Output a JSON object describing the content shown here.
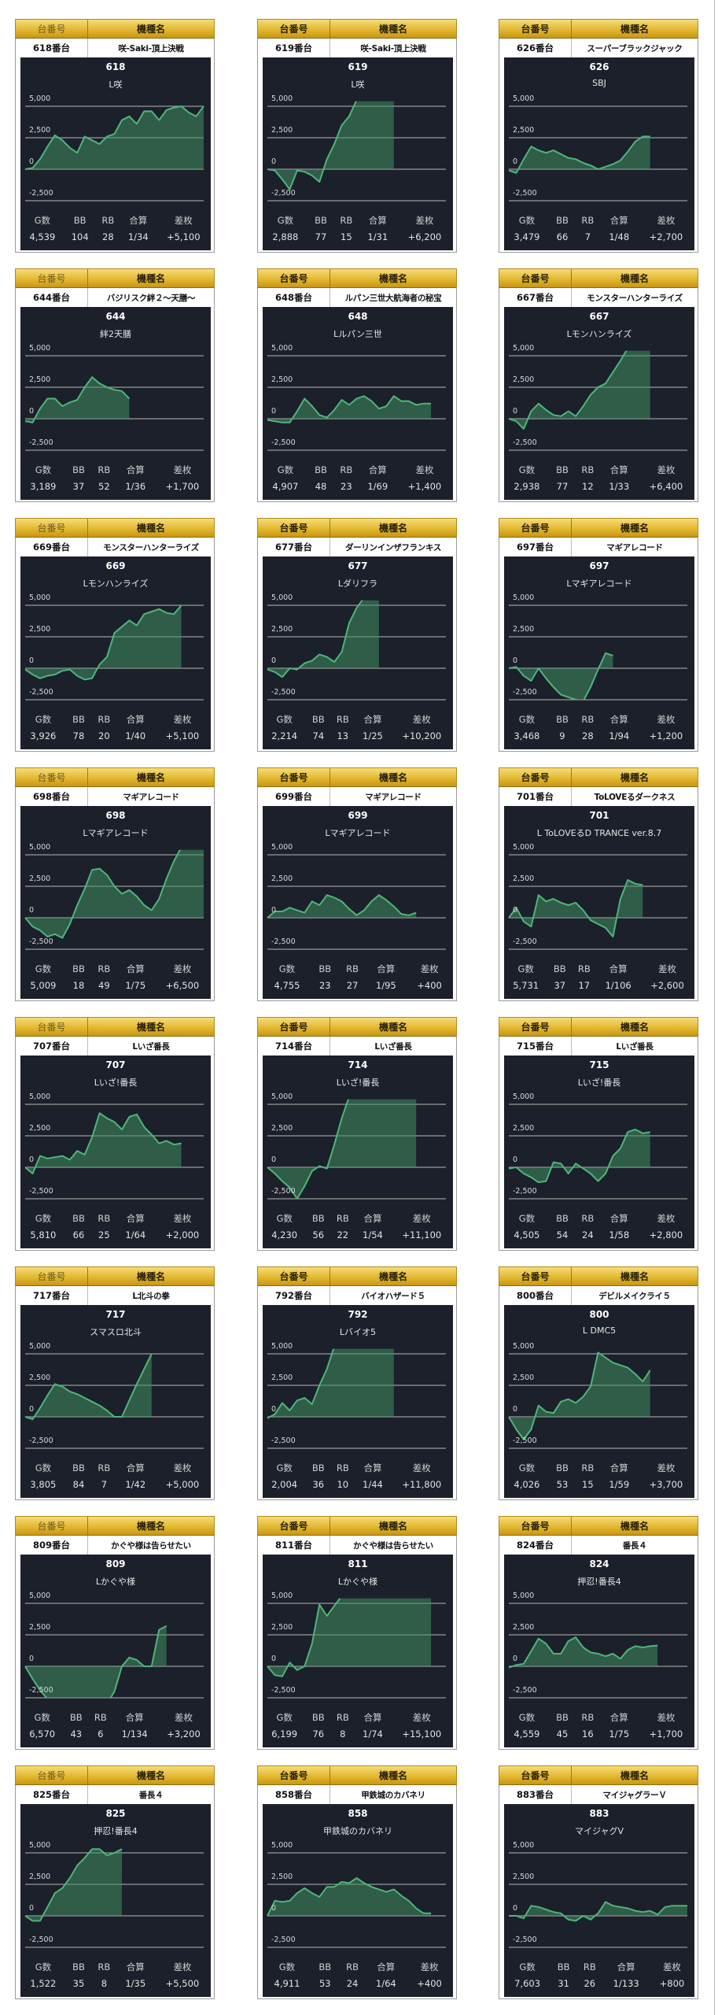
{
  "labels": {
    "header_number": "台番号",
    "header_model": "機種名",
    "stat_games": "G数",
    "stat_bb": "BB",
    "stat_rb": "RB",
    "stat_total": "合算",
    "stat_diff": "差枚"
  },
  "chart_axis": {
    "ylim": [
      -2500,
      5400
    ],
    "ticks": [
      {
        "value": 5000,
        "label": "5,000"
      },
      {
        "value": 2500,
        "label": "2,500"
      },
      {
        "value": 0,
        "label": "0"
      },
      {
        "value": -2500,
        "label": "-2,500"
      }
    ],
    "x_slots": 24
  },
  "colors": {
    "line": "#4fb57a",
    "fill": "#3f8f61",
    "panel": "#1c202b",
    "grid": "#9a9a9a",
    "gold": "#e3b832"
  },
  "machines": [
    {
      "number_label": "618番台",
      "model": "咲-Saki-頂上決戦",
      "title": "618",
      "subtitle": "L咲",
      "games": "4,539",
      "bb": "104",
      "rb": "28",
      "total": "1/34",
      "diff": "+5,100"
    },
    {
      "number_label": "619番台",
      "model": "咲-Saki-頂上決戦",
      "title": "619",
      "subtitle": "L咲",
      "games": "2,888",
      "bb": "77",
      "rb": "15",
      "total": "1/31",
      "diff": "+6,200"
    },
    {
      "number_label": "626番台",
      "model": "スーパーブラックジャック",
      "title": "626",
      "subtitle": "SBJ",
      "games": "3,479",
      "bb": "66",
      "rb": "7",
      "total": "1/48",
      "diff": "+2,700"
    },
    {
      "number_label": "644番台",
      "model": "バジリスク絆２～天膳～",
      "title": "644",
      "subtitle": "絆2天膳",
      "games": "3,189",
      "bb": "37",
      "rb": "52",
      "total": "1/36",
      "diff": "+1,700"
    },
    {
      "number_label": "648番台",
      "model": "ルパン三世大航海者の秘宝",
      "title": "648",
      "subtitle": "Lルパン三世",
      "games": "4,907",
      "bb": "48",
      "rb": "23",
      "total": "1/69",
      "diff": "+1,400"
    },
    {
      "number_label": "667番台",
      "model": "モンスターハンターライズ",
      "title": "667",
      "subtitle": "Lモンハンライズ",
      "games": "2,938",
      "bb": "77",
      "rb": "12",
      "total": "1/33",
      "diff": "+6,400"
    },
    {
      "number_label": "669番台",
      "model": "モンスターハンターライズ",
      "title": "669",
      "subtitle": "Lモンハンライズ",
      "games": "3,926",
      "bb": "78",
      "rb": "20",
      "total": "1/40",
      "diff": "+5,100"
    },
    {
      "number_label": "677番台",
      "model": "ダーリンインザフランキス",
      "title": "677",
      "subtitle": "Lダリフラ",
      "games": "2,214",
      "bb": "74",
      "rb": "13",
      "total": "1/25",
      "diff": "+10,200"
    },
    {
      "number_label": "697番台",
      "model": "マギアレコード",
      "title": "697",
      "subtitle": "Lマギアレコード",
      "games": "3,468",
      "bb": "9",
      "rb": "28",
      "total": "1/94",
      "diff": "+1,200"
    },
    {
      "number_label": "698番台",
      "model": "マギアレコード",
      "title": "698",
      "subtitle": "Lマギアレコード",
      "games": "5,009",
      "bb": "18",
      "rb": "49",
      "total": "1/75",
      "diff": "+6,500"
    },
    {
      "number_label": "699番台",
      "model": "マギアレコード",
      "title": "699",
      "subtitle": "Lマギアレコード",
      "games": "4,755",
      "bb": "23",
      "rb": "27",
      "total": "1/95",
      "diff": "+400"
    },
    {
      "number_label": "701番台",
      "model": "ToLOVEるダークネス",
      "title": "701",
      "subtitle": "L ToLOVEるD TRANCE ver.8.7",
      "games": "5,731",
      "bb": "37",
      "rb": "17",
      "total": "1/106",
      "diff": "+2,600"
    },
    {
      "number_label": "707番台",
      "model": "Lいざ番長",
      "title": "707",
      "subtitle": "Lいざ!番長",
      "games": "5,810",
      "bb": "66",
      "rb": "25",
      "total": "1/64",
      "diff": "+2,000"
    },
    {
      "number_label": "714番台",
      "model": "Lいざ番長",
      "title": "714",
      "subtitle": "Lいざ!番長",
      "games": "4,230",
      "bb": "56",
      "rb": "22",
      "total": "1/54",
      "diff": "+11,100"
    },
    {
      "number_label": "715番台",
      "model": "Lいざ番長",
      "title": "715",
      "subtitle": "Lいざ!番長",
      "games": "4,505",
      "bb": "54",
      "rb": "24",
      "total": "1/58",
      "diff": "+2,800"
    },
    {
      "number_label": "717番台",
      "model": "L北斗の拳",
      "title": "717",
      "subtitle": "スマスロ北斗",
      "games": "3,805",
      "bb": "84",
      "rb": "7",
      "total": "1/42",
      "diff": "+5,000"
    },
    {
      "number_label": "792番台",
      "model": "バイオハザード５",
      "title": "792",
      "subtitle": "Lバイオ5",
      "games": "2,004",
      "bb": "36",
      "rb": "10",
      "total": "1/44",
      "diff": "+11,800"
    },
    {
      "number_label": "800番台",
      "model": "デビルメイクライ５",
      "title": "800",
      "subtitle": "L DMC5",
      "games": "4,026",
      "bb": "53",
      "rb": "15",
      "total": "1/59",
      "diff": "+3,700"
    },
    {
      "number_label": "809番台",
      "model": "かぐや様は告らせたい",
      "title": "809",
      "subtitle": "Lかぐや様",
      "games": "6,570",
      "bb": "43",
      "rb": "6",
      "total": "1/134",
      "diff": "+3,200"
    },
    {
      "number_label": "811番台",
      "model": "かぐや様は告らせたい",
      "title": "811",
      "subtitle": "Lかぐや様",
      "games": "6,199",
      "bb": "76",
      "rb": "8",
      "total": "1/74",
      "diff": "+15,100"
    },
    {
      "number_label": "824番台",
      "model": "番長４",
      "title": "824",
      "subtitle": "押忍!番長4",
      "games": "4,559",
      "bb": "45",
      "rb": "16",
      "total": "1/75",
      "diff": "+1,700"
    },
    {
      "number_label": "825番台",
      "model": "番長４",
      "title": "825",
      "subtitle": "押忍!番長4",
      "games": "1,522",
      "bb": "35",
      "rb": "8",
      "total": "1/35",
      "diff": "+5,500"
    },
    {
      "number_label": "858番台",
      "model": "甲鉄城のカバネリ",
      "title": "858",
      "subtitle": "甲鉄城のカバネリ",
      "games": "4,911",
      "bb": "53",
      "rb": "24",
      "total": "1/64",
      "diff": "+400"
    },
    {
      "number_label": "883番台",
      "model": "マイジャグラーＶ",
      "title": "883",
      "subtitle": "マイジャグV",
      "games": "7,603",
      "bb": "31",
      "rb": "26",
      "total": "1/133",
      "diff": "+800"
    }
  ],
  "chart_data": [
    {
      "type": "area",
      "series": [
        0,
        100,
        800,
        1800,
        2700,
        2300,
        1700,
        1300,
        2600,
        2300,
        2000,
        2600,
        2800,
        3900,
        4200,
        3600,
        4600,
        4600,
        3900,
        4700,
        4900,
        5000,
        4500,
        4200,
        5000
      ]
    },
    {
      "type": "area",
      "series": [
        0,
        -100,
        -800,
        -1600,
        -100,
        -200,
        -500,
        -1000,
        800,
        2000,
        3500,
        4200,
        5500,
        6000,
        6200,
        6200,
        6300,
        6200
      ]
    },
    {
      "type": "area",
      "series": [
        -100,
        -300,
        800,
        1800,
        1500,
        1300,
        1500,
        1200,
        900,
        800,
        500,
        300,
        0,
        200,
        400,
        700,
        1400,
        2200,
        2600,
        2600
      ]
    },
    {
      "type": "area",
      "series": [
        -200,
        -300,
        800,
        1600,
        1600,
        1000,
        1300,
        1500,
        2500,
        3300,
        2800,
        2500,
        2300,
        2200,
        1600
      ]
    },
    {
      "type": "area",
      "series": [
        -100,
        -200,
        -300,
        -300,
        600,
        1600,
        1000,
        300,
        100,
        700,
        1500,
        1100,
        1600,
        1800,
        1400,
        800,
        1000,
        1800,
        1400,
        1400,
        1100,
        1200,
        1200
      ]
    },
    {
      "type": "area",
      "series": [
        0,
        -200,
        -800,
        600,
        1200,
        700,
        300,
        200,
        600,
        200,
        1000,
        1900,
        2500,
        2800,
        3700,
        4600,
        5600,
        6000,
        6000,
        6000
      ]
    },
    {
      "type": "area",
      "series": [
        -100,
        -500,
        -800,
        -600,
        -500,
        -200,
        -100,
        -600,
        -900,
        -800,
        300,
        900,
        2800,
        3300,
        3800,
        3400,
        4300,
        4500,
        4700,
        4400,
        4300,
        5000
      ]
    },
    {
      "type": "area",
      "series": [
        -100,
        -300,
        -700,
        0,
        -100,
        400,
        600,
        1100,
        900,
        500,
        1300,
        3600,
        4800,
        5600,
        5600,
        5600
      ]
    },
    {
      "type": "area",
      "series": [
        0,
        100,
        -600,
        -1000,
        0,
        -800,
        -1500,
        -2100,
        -2300,
        -2500,
        -2600,
        -1500,
        -100,
        1200,
        1000
      ]
    },
    {
      "type": "area",
      "series": [
        0,
        -700,
        -1000,
        -1500,
        -1300,
        -1600,
        -500,
        1000,
        2300,
        3800,
        3900,
        3400,
        2500,
        1900,
        2200,
        1700,
        1000,
        600,
        1500,
        3100,
        4500,
        5600,
        5600,
        5600,
        5600
      ]
    },
    {
      "type": "area",
      "series": [
        0,
        500,
        500,
        800,
        600,
        400,
        1300,
        1000,
        1800,
        1600,
        1300,
        700,
        200,
        600,
        1300,
        1800,
        1400,
        900,
        300,
        200,
        400
      ]
    },
    {
      "type": "area",
      "series": [
        0,
        800,
        -300,
        -700,
        1800,
        1300,
        1500,
        1200,
        1000,
        1200,
        600,
        -200,
        -500,
        -800,
        -1500,
        1500,
        3000,
        2700,
        2600
      ]
    },
    {
      "type": "area",
      "series": [
        0,
        -500,
        900,
        700,
        800,
        900,
        600,
        1300,
        1000,
        2400,
        4300,
        3900,
        3600,
        3000,
        4000,
        4200,
        3200,
        2600,
        1900,
        2100,
        1800,
        1900
      ]
    },
    {
      "type": "area",
      "series": [
        0,
        -500,
        -1100,
        -1600,
        -2500,
        -1500,
        -300,
        100,
        -100,
        1800,
        3900,
        5600,
        5600,
        5600,
        5600,
        5600,
        5600,
        5600,
        5600,
        5600,
        5600
      ]
    },
    {
      "type": "area",
      "series": [
        -100,
        0,
        -500,
        -800,
        -1200,
        -1100,
        400,
        300,
        -500,
        300,
        -100,
        -500,
        -1100,
        -500,
        900,
        1500,
        2800,
        3000,
        2700,
        2800
      ]
    },
    {
      "type": "area",
      "series": [
        0,
        -200,
        700,
        1700,
        2600,
        2400,
        2000,
        1800,
        1500,
        1200,
        900,
        500,
        0,
        0,
        1300,
        2600,
        3800,
        5000
      ]
    },
    {
      "type": "area",
      "series": [
        -100,
        200,
        1100,
        500,
        1300,
        1500,
        1000,
        2500,
        3800,
        5600,
        5600,
        5600,
        5600,
        5600,
        5600,
        5600,
        5600,
        5600
      ]
    },
    {
      "type": "area",
      "series": [
        0,
        -1000,
        -1800,
        -1000,
        900,
        400,
        300,
        1200,
        1400,
        1100,
        1600,
        2400,
        5100,
        4700,
        4300,
        4100,
        3900,
        3400,
        2800,
        3700
      ]
    },
    {
      "type": "area",
      "series": [
        0,
        -1000,
        -1900,
        -2600,
        -3000,
        -3000,
        -3000,
        -3000,
        -3000,
        -3000,
        -3000,
        -3000,
        -2000,
        0,
        700,
        500,
        0,
        0,
        2900,
        3200
      ]
    },
    {
      "type": "area",
      "series": [
        0,
        -700,
        -800,
        300,
        -300,
        0,
        1800,
        4900,
        4000,
        4800,
        5600,
        5600,
        5600,
        5600,
        5600,
        5600,
        5600,
        5600,
        5600,
        5600,
        5600,
        5600,
        5600
      ]
    },
    {
      "type": "area",
      "series": [
        -100,
        100,
        200,
        1200,
        2200,
        1800,
        1000,
        1000,
        2000,
        2300,
        1500,
        1100,
        1000,
        800,
        1000,
        600,
        1300,
        1600,
        1500,
        1600,
        1650
      ]
    },
    {
      "type": "area",
      "series": [
        0,
        -400,
        -400,
        700,
        1800,
        2200,
        3000,
        4000,
        4600,
        5300,
        5300,
        4800,
        5000,
        5300
      ]
    },
    {
      "type": "area",
      "series": [
        0,
        1200,
        1100,
        1200,
        1800,
        2200,
        1800,
        1500,
        2300,
        2300,
        2700,
        2600,
        3000,
        2600,
        2300,
        2100,
        1900,
        2100,
        1600,
        1200,
        600,
        200,
        200
      ]
    },
    {
      "type": "area",
      "series": [
        0,
        0,
        -200,
        800,
        700,
        500,
        300,
        200,
        -300,
        -400,
        0,
        -300,
        200,
        1100,
        800,
        700,
        600,
        400,
        300,
        400,
        100,
        700,
        800,
        800,
        800
      ]
    }
  ]
}
